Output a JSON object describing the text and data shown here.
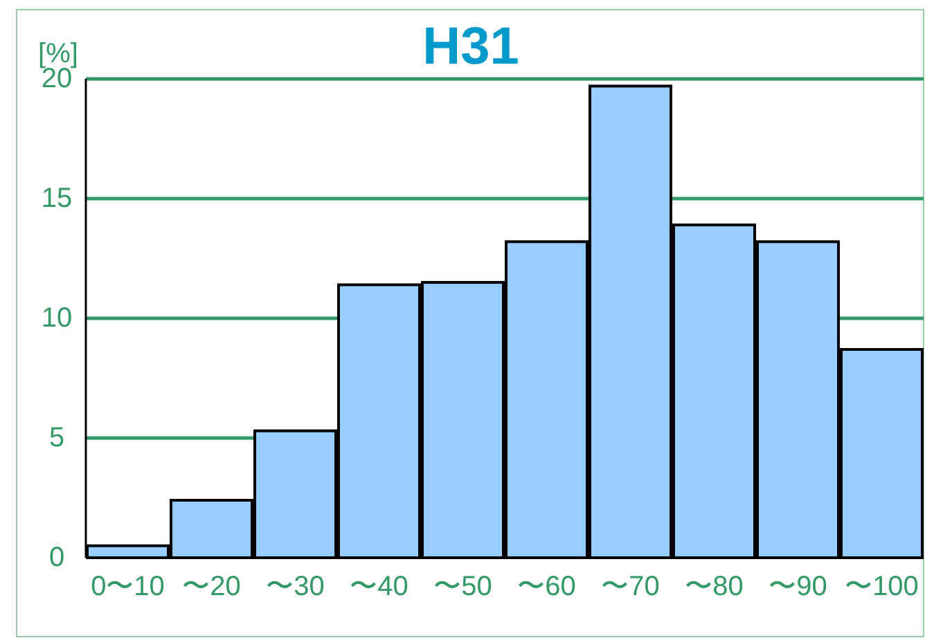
{
  "chart_data": {
    "type": "bar",
    "title": "H31",
    "ylabel": "[%]",
    "categories": [
      "0〜10",
      "〜20",
      "〜30",
      "〜40",
      "〜50",
      "〜60",
      "〜70",
      "〜80",
      "〜90",
      "〜100"
    ],
    "values": [
      0.5,
      2.4,
      5.3,
      11.4,
      11.5,
      13.2,
      19.7,
      13.9,
      13.2,
      8.7
    ],
    "color": "#99ccff",
    "ylim": [
      0,
      20
    ],
    "yticks": [
      0,
      5,
      10,
      15,
      20
    ],
    "grid": "y"
  }
}
